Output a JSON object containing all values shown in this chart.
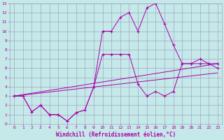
{
  "xlabel": "Windchill (Refroidissement éolien,°C)",
  "xlim": [
    -0.5,
    23.5
  ],
  "ylim": [
    0,
    13
  ],
  "xticks": [
    0,
    1,
    2,
    3,
    4,
    5,
    6,
    7,
    8,
    9,
    10,
    11,
    12,
    13,
    14,
    15,
    16,
    17,
    18,
    19,
    20,
    21,
    22,
    23
  ],
  "yticks": [
    0,
    1,
    2,
    3,
    4,
    5,
    6,
    7,
    8,
    9,
    10,
    11,
    12,
    13
  ],
  "bg_color": "#c5e8e8",
  "line_color": "#aa00aa",
  "grid_color": "#9999bb",
  "line1_x": [
    0,
    1,
    2,
    3,
    4,
    5,
    6,
    7,
    8,
    9,
    10,
    11,
    12,
    13,
    14,
    15,
    16,
    17,
    18,
    19,
    20,
    21,
    22,
    23
  ],
  "line1_y": [
    3,
    3,
    1.3,
    2,
    1,
    1,
    0.3,
    1.2,
    1.5,
    4,
    10,
    10,
    11.5,
    12,
    10,
    12.5,
    13,
    10.8,
    8.5,
    6.5,
    6.5,
    6.5,
    6.5,
    6
  ],
  "line2_x": [
    0,
    1,
    2,
    3,
    4,
    5,
    6,
    7,
    8,
    9,
    10,
    11,
    12,
    13,
    14,
    15,
    16,
    17,
    18,
    19,
    20,
    21,
    22,
    23
  ],
  "line2_y": [
    3,
    3,
    1.3,
    2,
    1,
    1,
    0.3,
    1.2,
    1.5,
    4,
    7.5,
    7.5,
    7.5,
    7.5,
    4.3,
    3,
    3.5,
    3,
    3.5,
    6.5,
    6.5,
    7,
    6.5,
    6.5
  ],
  "line3_x": [
    0,
    23
  ],
  "line3_y": [
    3,
    6.5
  ],
  "line4_x": [
    0,
    23
  ],
  "line4_y": [
    3,
    5.5
  ]
}
